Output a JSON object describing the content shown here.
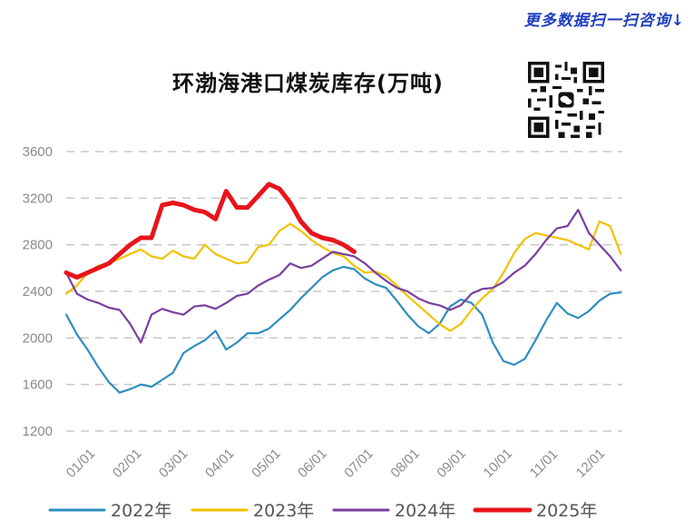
{
  "header": {
    "top_link": "更多数据扫一扫咨询↓"
  },
  "chart_data": {
    "type": "line",
    "title": "环渤海港口煤炭库存(万吨)",
    "xlabel": "",
    "ylabel": "",
    "x_tick_labels": [
      "01/01",
      "02/01",
      "03/01",
      "04/01",
      "05/01",
      "06/01",
      "07/01",
      "08/01",
      "09/01",
      "10/01",
      "11/01",
      "12/01"
    ],
    "y_ticks": [
      1200,
      1600,
      2000,
      2400,
      2800,
      3200,
      3600
    ],
    "ylim": [
      1200,
      3600
    ],
    "xlim": [
      0,
      365
    ],
    "grid": "horizontal dashed",
    "legend_position": "bottom",
    "series": [
      {
        "name": "2022年",
        "color": "#2e8ec0",
        "x": [
          0,
          7,
          14,
          21,
          28,
          35,
          42,
          49,
          56,
          63,
          70,
          77,
          84,
          91,
          98,
          105,
          112,
          119,
          126,
          133,
          140,
          147,
          154,
          161,
          168,
          175,
          182,
          189,
          196,
          203,
          210,
          217,
          224,
          231,
          238,
          245,
          252,
          259,
          266,
          273,
          280,
          287,
          294,
          301,
          308,
          315,
          322,
          329,
          336,
          343,
          350,
          357,
          364
        ],
        "y": [
          2200,
          2030,
          1900,
          1750,
          1620,
          1530,
          1560,
          1600,
          1580,
          1640,
          1700,
          1870,
          1930,
          1980,
          2060,
          1900,
          1960,
          2040,
          2040,
          2080,
          2160,
          2240,
          2340,
          2430,
          2520,
          2580,
          2610,
          2590,
          2510,
          2460,
          2430,
          2320,
          2200,
          2100,
          2040,
          2120,
          2270,
          2330,
          2300,
          2200,
          1960,
          1800,
          1770,
          1820,
          1980,
          2150,
          2300,
          2210,
          2170,
          2230,
          2320,
          2380,
          2390
        ]
      },
      {
        "name": "2023年",
        "color": "#f2c200",
        "x": [
          0,
          7,
          14,
          21,
          28,
          35,
          42,
          49,
          56,
          63,
          70,
          77,
          84,
          91,
          98,
          105,
          112,
          119,
          126,
          133,
          140,
          147,
          154,
          161,
          168,
          175,
          182,
          189,
          196,
          203,
          210,
          217,
          224,
          231,
          238,
          245,
          252,
          259,
          266,
          273,
          280,
          287,
          294,
          301,
          308,
          315,
          322,
          329,
          336,
          343,
          350,
          357,
          364
        ],
        "y": [
          2380,
          2450,
          2560,
          2620,
          2640,
          2680,
          2720,
          2760,
          2700,
          2680,
          2750,
          2700,
          2680,
          2800,
          2720,
          2680,
          2640,
          2650,
          2780,
          2800,
          2920,
          2980,
          2920,
          2840,
          2780,
          2730,
          2700,
          2620,
          2560,
          2570,
          2530,
          2450,
          2360,
          2280,
          2200,
          2120,
          2060,
          2120,
          2240,
          2340,
          2420,
          2560,
          2730,
          2850,
          2900,
          2880,
          2860,
          2840,
          2800,
          2760,
          3000,
          2960,
          2720
        ]
      },
      {
        "name": "2024年",
        "color": "#7a3f9e",
        "x": [
          0,
          7,
          14,
          21,
          28,
          35,
          42,
          49,
          56,
          63,
          70,
          77,
          84,
          91,
          98,
          105,
          112,
          119,
          126,
          133,
          140,
          147,
          154,
          161,
          168,
          175,
          182,
          189,
          196,
          203,
          210,
          217,
          224,
          231,
          238,
          245,
          252,
          259,
          266,
          273,
          280,
          287,
          294,
          301,
          308,
          315,
          322,
          329,
          336,
          343,
          350,
          357,
          364
        ],
        "y": [
          2560,
          2380,
          2330,
          2300,
          2260,
          2240,
          2120,
          1960,
          2200,
          2250,
          2220,
          2200,
          2270,
          2280,
          2250,
          2300,
          2360,
          2380,
          2450,
          2500,
          2540,
          2640,
          2600,
          2620,
          2680,
          2740,
          2720,
          2700,
          2640,
          2560,
          2490,
          2430,
          2400,
          2340,
          2300,
          2280,
          2240,
          2280,
          2380,
          2420,
          2430,
          2480,
          2560,
          2620,
          2720,
          2840,
          2940,
          2960,
          3100,
          2900,
          2800,
          2700,
          2580
        ]
      },
      {
        "name": "2025年",
        "color": "#e8141c",
        "x": [
          0,
          7,
          14,
          21,
          28,
          35,
          42,
          49,
          56,
          63,
          70,
          77,
          84,
          91,
          98,
          105,
          112,
          119,
          126,
          133,
          140,
          147,
          154,
          161,
          168,
          175,
          182,
          189
        ],
        "y": [
          2560,
          2520,
          2560,
          2600,
          2640,
          2720,
          2800,
          2860,
          2860,
          3140,
          3160,
          3140,
          3100,
          3080,
          3020,
          3260,
          3120,
          3120,
          3220,
          3320,
          3280,
          3160,
          3000,
          2900,
          2860,
          2840,
          2800,
          2740
        ]
      }
    ]
  }
}
